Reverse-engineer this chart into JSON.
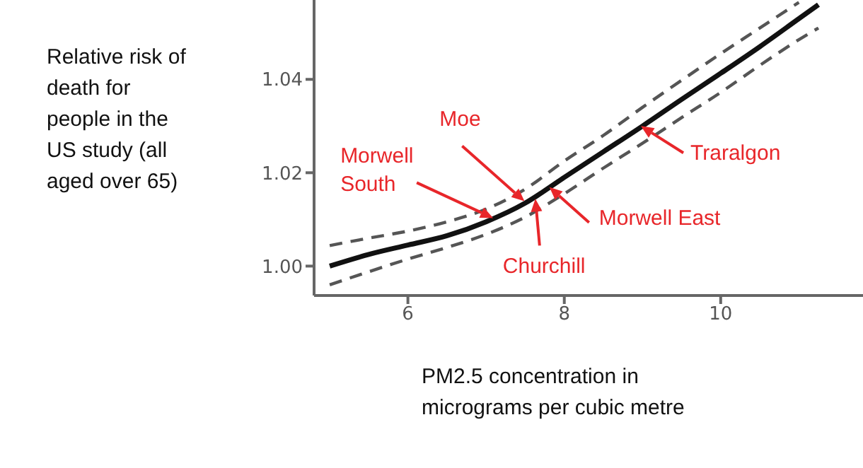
{
  "chart_data": {
    "type": "line",
    "ylabel": "Relative risk of death for people in the US study (all aged over 65)",
    "xlabel": "PM2.5 concentration in micrograms per cubic metre",
    "x": [
      5,
      5.5,
      6,
      6.5,
      7,
      7.5,
      8,
      8.5,
      9,
      9.5,
      10,
      10.5,
      11,
      11.25
    ],
    "series": [
      {
        "color": "#111111",
        "line_style": "solid",
        "values": [
          1.0,
          1.0025,
          1.0045,
          1.0065,
          1.0095,
          1.0135,
          1.019,
          1.0245,
          1.03,
          1.0357,
          1.0413,
          1.047,
          1.053,
          1.056
        ]
      },
      {
        "color": "#555555",
        "line_style": "dashed",
        "values": [
          1.0044,
          1.006,
          1.0075,
          1.0095,
          1.0122,
          1.0165,
          1.0225,
          1.028,
          1.034,
          1.0398,
          1.0455,
          1.051,
          1.0565,
          null
        ]
      },
      {
        "color": "#555555",
        "line_style": "dashed",
        "values": [
          0.996,
          0.9988,
          1.0015,
          1.004,
          1.0068,
          1.0105,
          1.0155,
          1.021,
          1.0263,
          1.0318,
          1.0372,
          1.043,
          1.0485,
          1.051
        ]
      }
    ],
    "xlim": [
      4.8,
      11.82
    ],
    "xticks": [
      6,
      8,
      10
    ],
    "ylim": [
      0.9937,
      1.057
    ],
    "yticks": [
      {
        "value": 1,
        "label": "1.00"
      },
      {
        "value": 1.02,
        "label": "1.02"
      },
      {
        "value": 1.04,
        "label": "1.04"
      }
    ],
    "grid": false,
    "legend": false,
    "marker": "none",
    "annotations": [
      {
        "text": "Morwell South",
        "x": 7.09,
        "y": 1.0103
      },
      {
        "text": "Moe",
        "x": 7.49,
        "y": 1.0139
      },
      {
        "text": "Churchill",
        "x": 7.63,
        "y": 1.0144
      },
      {
        "text": "Morwell East",
        "x": 7.81,
        "y": 1.0169
      },
      {
        "text": "Traralgon",
        "x": 8.98,
        "y": 1.03
      }
    ]
  }
}
